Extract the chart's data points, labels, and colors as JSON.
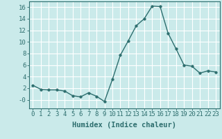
{
  "x": [
    0,
    1,
    2,
    3,
    4,
    5,
    6,
    7,
    8,
    9,
    10,
    11,
    12,
    13,
    14,
    15,
    16,
    17,
    18,
    19,
    20,
    21,
    22,
    23
  ],
  "y": [
    2.5,
    1.8,
    1.7,
    1.7,
    1.5,
    0.7,
    0.5,
    1.2,
    0.6,
    -0.3,
    3.5,
    7.7,
    10.2,
    12.8,
    14.0,
    16.2,
    16.1,
    11.5,
    8.8,
    6.0,
    5.8,
    4.6,
    5.0,
    4.8
  ],
  "line_color": "#2d6e6e",
  "marker": "o",
  "markersize": 2.5,
  "linewidth": 1.0,
  "bg_color": "#caeaea",
  "grid_color": "#ffffff",
  "xlabel": "Humidex (Indice chaleur)",
  "xlabel_fontsize": 7.5,
  "tick_fontsize": 6.5,
  "yticks": [
    0,
    2,
    4,
    6,
    8,
    10,
    12,
    14,
    16
  ],
  "ytick_labels": [
    "-0",
    "2",
    "4",
    "6",
    "8",
    "10",
    "12",
    "14",
    "16"
  ],
  "ylim": [
    -1.5,
    17.0
  ],
  "xlim": [
    -0.5,
    23.5
  ],
  "xtick_labels": [
    "0",
    "1",
    "2",
    "3",
    "4",
    "5",
    "6",
    "7",
    "8",
    "9",
    "10",
    "11",
    "12",
    "13",
    "14",
    "15",
    "16",
    "17",
    "18",
    "19",
    "20",
    "21",
    "22",
    "23"
  ]
}
